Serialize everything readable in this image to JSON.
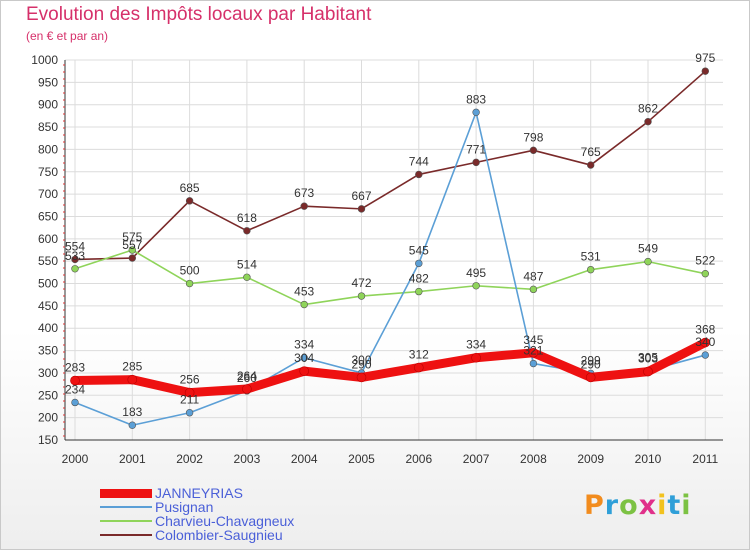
{
  "header": {
    "title": "Evolution des Impôts locaux par Habitant",
    "subtitle": "(en € et par an)"
  },
  "logo": {
    "text": "Proxiti",
    "colors": [
      "#f28c1e",
      "#2f9fd8",
      "#7cc243",
      "#e0308a",
      "#f2c21e",
      "#2f9fd8",
      "#7cc243"
    ]
  },
  "chart_data": {
    "type": "line",
    "title": "Evolution des Impôts locaux par Habitant",
    "subtitle": "(en € et par an)",
    "xlabel": "",
    "ylabel": "",
    "x": [
      "2000",
      "2001",
      "2002",
      "2003",
      "2004",
      "2005",
      "2006",
      "2007",
      "2008",
      "2009",
      "2010",
      "2011"
    ],
    "ylim": [
      150,
      1000
    ],
    "yticks": [
      150,
      200,
      250,
      300,
      350,
      400,
      450,
      500,
      550,
      600,
      650,
      700,
      750,
      800,
      850,
      900,
      950,
      1000
    ],
    "grid": true,
    "legend": "bottom-left",
    "series": [
      {
        "name": "JANNEYRIAS",
        "color": "#ee1111",
        "values": [
          283,
          285,
          256,
          264,
          304,
          290,
          312,
          334,
          345,
          290,
          303,
          368
        ],
        "labels": [
          "283",
          "285",
          "256",
          "264",
          "304",
          "290",
          "312",
          "334",
          "345",
          "290",
          "303",
          "368"
        ]
      },
      {
        "name": "Pusignan",
        "color": "#5b9fd6",
        "values": [
          234,
          183,
          211,
          260,
          334,
          300,
          545,
          883,
          321,
          299,
          305,
          340
        ],
        "labels": [
          "234",
          "183",
          "211",
          "260",
          "334",
          "300",
          "545",
          "883",
          "321",
          "299",
          "305",
          "340"
        ]
      },
      {
        "name": "Charvieu-Chavagneux",
        "color": "#8fd45a",
        "values": [
          533,
          575,
          500,
          514,
          453,
          472,
          482,
          495,
          487,
          531,
          549,
          522
        ],
        "labels": [
          "533",
          "575",
          "500",
          "514",
          "453",
          "472",
          "482",
          "495",
          "487",
          "531",
          "549",
          "522"
        ]
      },
      {
        "name": "Colombier-Saugnieu",
        "color": "#7a2a2a",
        "values": [
          554,
          557,
          685,
          618,
          673,
          667,
          744,
          771,
          798,
          765,
          862,
          975
        ],
        "labels": [
          "554",
          "557",
          "685",
          "618",
          "673",
          "667",
          "744",
          "771",
          "798",
          "765",
          "862",
          "975"
        ]
      }
    ]
  }
}
